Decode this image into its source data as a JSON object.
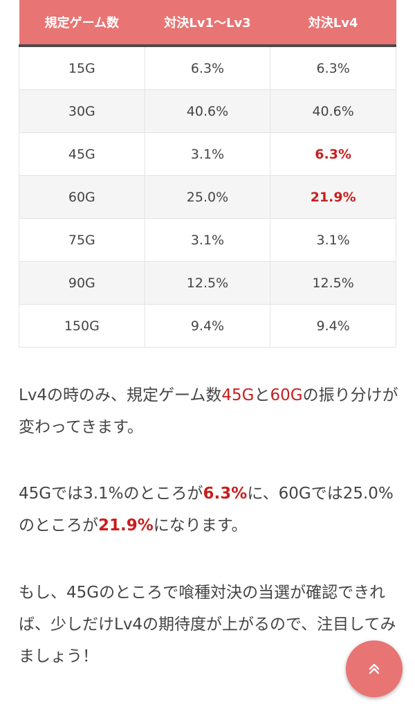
{
  "table": {
    "headers": [
      "規定ゲーム数",
      "対決Lv1〜Lv3",
      "対決Lv4"
    ],
    "rows": [
      {
        "games": "15G",
        "lv1_3": "6.3%",
        "lv4": "6.3%",
        "lv4_highlight": false
      },
      {
        "games": "30G",
        "lv1_3": "40.6%",
        "lv4": "40.6%",
        "lv4_highlight": false
      },
      {
        "games": "45G",
        "lv1_3": "3.1%",
        "lv4": "6.3%",
        "lv4_highlight": true
      },
      {
        "games": "60G",
        "lv1_3": "25.0%",
        "lv4": "21.9%",
        "lv4_highlight": true
      },
      {
        "games": "75G",
        "lv1_3": "3.1%",
        "lv4": "3.1%",
        "lv4_highlight": false
      },
      {
        "games": "90G",
        "lv1_3": "12.5%",
        "lv4": "12.5%",
        "lv4_highlight": false
      },
      {
        "games": "150G",
        "lv1_3": "9.4%",
        "lv4": "9.4%",
        "lv4_highlight": false
      }
    ]
  },
  "paragraph1": {
    "t1": "Lv4の時のみ、規定ゲーム数",
    "r1": "45G",
    "t2": "と",
    "r2": "60G",
    "t3": "の振り分けが変わってきます。"
  },
  "paragraph2": {
    "t1": "45Gでは3.1%のところが",
    "b1": "6.3%",
    "t2": "に、60Gでは25.0%のところが",
    "b2": "21.9%",
    "t3": "になります。"
  },
  "paragraph3": {
    "text": "もし、45Gのところで喰種対決の当選が確認できれば、少しだけLv4の期待度が上がるので、注目してみましょう！"
  },
  "scroll_top_button": {
    "icon": "double-chevron-up-icon"
  },
  "colors": {
    "header_bg": "#e87474",
    "highlight": "#c81e1e",
    "button_bg": "#e87474"
  }
}
